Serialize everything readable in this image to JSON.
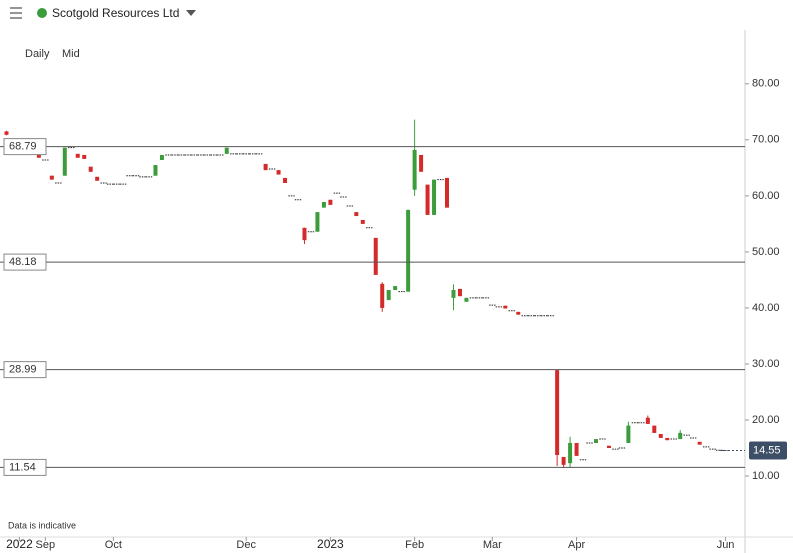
{
  "header": {
    "title": "Scotgold Resources Ltd",
    "interval": "Daily",
    "price_type": "Mid",
    "footnote": "Data is indicative"
  },
  "chart_data": {
    "type": "candlestick",
    "up_color": "#3c9c3c",
    "down_color": "#d42a2a",
    "flat_color": "#222222",
    "open": [
      71.5,
      68.8,
      68.8,
      68.8,
      68.5,
      67.3,
      66.4,
      63.6,
      62.3,
      63.6,
      68.6,
      67.5,
      67.3,
      65.2,
      63.4,
      62.3,
      62.1,
      62.1,
      62.1,
      63.6,
      63.6,
      63.4,
      63.4,
      63.6,
      66.4,
      67.3,
      67.3,
      67.3,
      67.3,
      67.3,
      67.3,
      67.3,
      67.3,
      67.3,
      67.5,
      67.5,
      67.5,
      67.5,
      67.5,
      67.5,
      65.7,
      64.8,
      64.6,
      63.2,
      60.0,
      59.3,
      54.3,
      53.6,
      53.6,
      57.9,
      59.3,
      60.5,
      59.8,
      58.2,
      57.1,
      55.7,
      54.3,
      52.5,
      44.3,
      41.4,
      43.2,
      42.9,
      42.9,
      61.1,
      67.3,
      62.0,
      56.6,
      62.9,
      63.2,
      41.8,
      43.4,
      41.1,
      41.8,
      41.8,
      41.8,
      40.5,
      40.2,
      40.4,
      39.5,
      39.3,
      38.6,
      38.6,
      38.6,
      38.6,
      38.6,
      28.9,
      13.4,
      12.3,
      15.9,
      12.9,
      15.9,
      15.9,
      16.6,
      15.4,
      14.8,
      15.0,
      15.9,
      19.5,
      19.5,
      20.4,
      19.0,
      17.5,
      16.8,
      16.6,
      16.6,
      17.3,
      16.8,
      16.1,
      15.2,
      14.8,
      14.6,
      14.55
    ],
    "high": [
      71.6,
      68.8,
      68.8,
      68.8,
      68.5,
      67.3,
      66.4,
      63.6,
      62.3,
      68.6,
      68.6,
      67.5,
      67.3,
      65.2,
      63.4,
      62.3,
      62.1,
      62.1,
      62.1,
      63.6,
      63.6,
      63.4,
      63.4,
      65.5,
      67.3,
      67.3,
      67.3,
      67.3,
      67.3,
      67.3,
      67.3,
      67.3,
      67.3,
      67.3,
      68.6,
      67.5,
      67.5,
      67.5,
      67.5,
      67.5,
      65.7,
      64.8,
      64.6,
      63.2,
      60.0,
      59.3,
      54.3,
      53.6,
      57.1,
      58.9,
      59.3,
      60.5,
      59.8,
      58.2,
      57.1,
      55.7,
      54.3,
      52.5,
      44.6,
      43.2,
      43.9,
      42.9,
      57.5,
      73.6,
      67.3,
      62.0,
      62.9,
      62.9,
      63.2,
      44.2,
      43.4,
      41.8,
      41.8,
      41.8,
      41.8,
      40.5,
      40.2,
      40.4,
      39.5,
      39.3,
      38.6,
      38.6,
      38.6,
      38.6,
      38.6,
      28.9,
      13.4,
      17.0,
      15.9,
      12.9,
      15.9,
      16.6,
      16.6,
      15.4,
      14.8,
      15.0,
      19.7,
      19.5,
      19.5,
      20.8,
      19.0,
      17.5,
      16.8,
      16.6,
      18.2,
      17.3,
      16.8,
      16.1,
      15.2,
      14.8,
      14.6,
      14.55
    ],
    "low": [
      70.8,
      68.8,
      68.8,
      68.8,
      68.5,
      66.8,
      66.4,
      62.9,
      62.3,
      63.6,
      68.6,
      66.8,
      66.6,
      64.3,
      62.7,
      62.3,
      62.1,
      62.1,
      62.1,
      63.6,
      63.6,
      63.4,
      63.4,
      63.6,
      66.4,
      67.3,
      67.3,
      67.3,
      67.3,
      67.3,
      67.3,
      67.3,
      67.3,
      67.3,
      67.5,
      67.5,
      67.5,
      67.5,
      67.5,
      67.5,
      64.6,
      64.8,
      63.8,
      62.3,
      60.0,
      59.3,
      51.4,
      53.6,
      53.6,
      57.9,
      58.4,
      60.5,
      59.8,
      58.2,
      56.4,
      55.0,
      54.3,
      45.9,
      39.3,
      41.4,
      43.2,
      42.9,
      42.9,
      60.0,
      64.3,
      56.6,
      56.6,
      62.9,
      57.9,
      39.6,
      42.1,
      41.1,
      41.8,
      41.8,
      41.8,
      40.5,
      40.2,
      39.9,
      39.5,
      38.8,
      38.6,
      38.6,
      38.6,
      38.6,
      38.6,
      11.8,
      11.5,
      11.6,
      13.6,
      12.9,
      15.9,
      15.9,
      16.6,
      15.0,
      14.8,
      15.0,
      15.9,
      19.5,
      19.5,
      19.3,
      17.7,
      16.8,
      16.4,
      16.6,
      16.6,
      17.3,
      16.8,
      15.6,
      15.2,
      14.8,
      14.6,
      14.55
    ],
    "close": [
      70.9,
      68.8,
      68.8,
      68.8,
      68.5,
      66.8,
      66.4,
      62.9,
      62.3,
      68.6,
      68.6,
      66.8,
      66.6,
      64.3,
      62.7,
      62.3,
      62.1,
      62.1,
      62.1,
      63.6,
      63.6,
      63.4,
      63.4,
      65.5,
      67.3,
      67.3,
      67.3,
      67.3,
      67.3,
      67.3,
      67.3,
      67.3,
      67.3,
      67.3,
      68.6,
      67.5,
      67.5,
      67.5,
      67.5,
      67.5,
      64.6,
      64.8,
      63.8,
      62.3,
      60.0,
      59.3,
      52.1,
      53.6,
      57.1,
      58.9,
      58.4,
      60.5,
      59.8,
      58.2,
      56.4,
      55.0,
      54.3,
      45.9,
      40.0,
      43.2,
      43.9,
      42.9,
      57.5,
      68.2,
      64.3,
      56.6,
      62.9,
      62.9,
      57.9,
      43.2,
      42.1,
      41.8,
      41.8,
      41.8,
      41.8,
      40.5,
      40.2,
      39.9,
      39.5,
      38.8,
      38.6,
      38.6,
      38.6,
      38.6,
      38.6,
      13.75,
      12.0,
      15.9,
      13.6,
      12.9,
      15.9,
      16.6,
      16.6,
      15.0,
      14.8,
      15.0,
      19.0,
      19.5,
      19.5,
      19.3,
      17.7,
      16.8,
      16.4,
      16.6,
      17.7,
      17.3,
      16.8,
      15.6,
      15.2,
      14.8,
      14.6,
      14.55
    ],
    "xlim": [
      -1,
      114
    ],
    "xticks": [
      {
        "value": 2,
        "label": "2022"
      },
      {
        "value": 6,
        "label": "Sep"
      },
      {
        "value": 16.5,
        "label": "Oct"
      },
      {
        "value": 37,
        "label": "Dec"
      },
      {
        "value": 50,
        "label": "2023"
      },
      {
        "value": 63,
        "label": "Feb"
      },
      {
        "value": 75,
        "label": "Mar"
      },
      {
        "value": 88,
        "label": "Apr"
      },
      {
        "value": 111,
        "label": "Jun"
      }
    ],
    "ylim": [
      -0.7,
      89.6
    ],
    "yticks": [
      {
        "value": 10,
        "label": "10.00"
      },
      {
        "value": 20,
        "label": "20.00"
      },
      {
        "value": 30,
        "label": "30.00"
      },
      {
        "value": 40,
        "label": "40.00"
      },
      {
        "value": 50,
        "label": "50.00"
      },
      {
        "value": 60,
        "label": "60.00"
      },
      {
        "value": 70,
        "label": "70.00"
      },
      {
        "value": 80,
        "label": "80.00"
      }
    ],
    "levels": [
      68.79,
      48.18,
      28.99,
      11.54
    ],
    "last_price": 14.55
  }
}
